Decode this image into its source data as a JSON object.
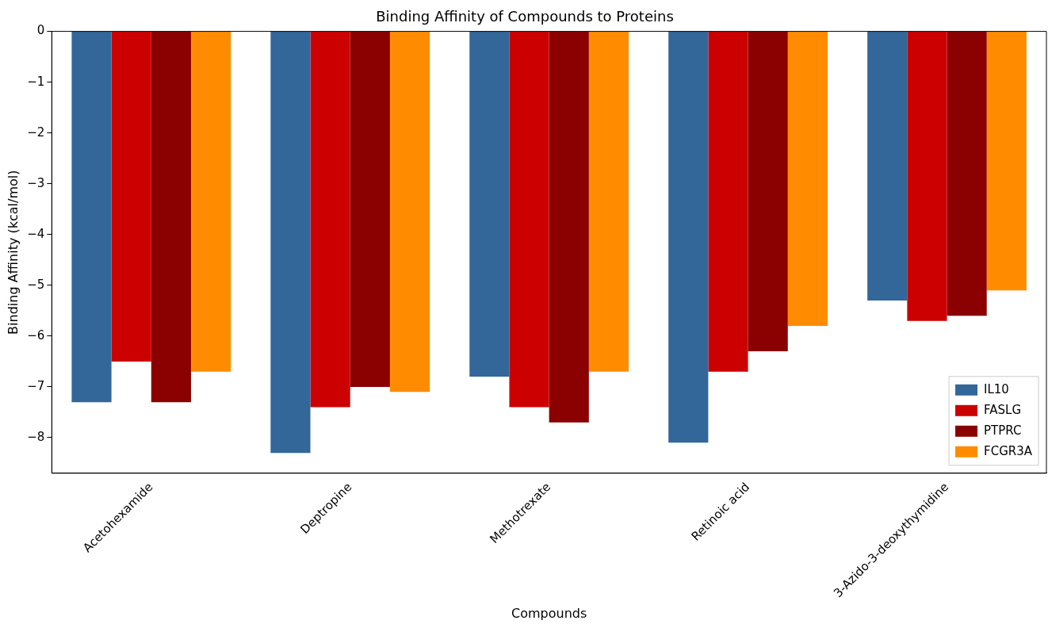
{
  "chart_data": {
    "type": "bar",
    "title": "Binding Affinity of Compounds to Proteins",
    "xlabel": "Compounds",
    "ylabel": "Binding Affinity (kcal/mol)",
    "categories": [
      "Acetohexamide",
      "Deptropine",
      "Methotrexate",
      "Retinoic acid",
      "3-Azido-3-deoxythymidine"
    ],
    "series": [
      {
        "name": "IL10",
        "color": "#336699",
        "values": [
          -7.3,
          -8.3,
          -6.8,
          -8.1,
          -5.3
        ]
      },
      {
        "name": "FASLG",
        "color": "#cc0000",
        "values": [
          -6.5,
          -7.4,
          -7.4,
          -6.7,
          -5.7
        ]
      },
      {
        "name": "PTPRC",
        "color": "#8b0000",
        "values": [
          -7.3,
          -7.0,
          -7.7,
          -6.3,
          -5.6
        ]
      },
      {
        "name": "FCGR3A",
        "color": "#ff8c00",
        "values": [
          -6.7,
          -7.1,
          -6.7,
          -5.8,
          -5.1
        ]
      }
    ],
    "ylim": [
      -8.7,
      0
    ],
    "yticks": [
      0,
      -1,
      -2,
      -3,
      -4,
      -5,
      -6,
      -7,
      -8
    ],
    "grid": false,
    "legend": "bottom right"
  }
}
